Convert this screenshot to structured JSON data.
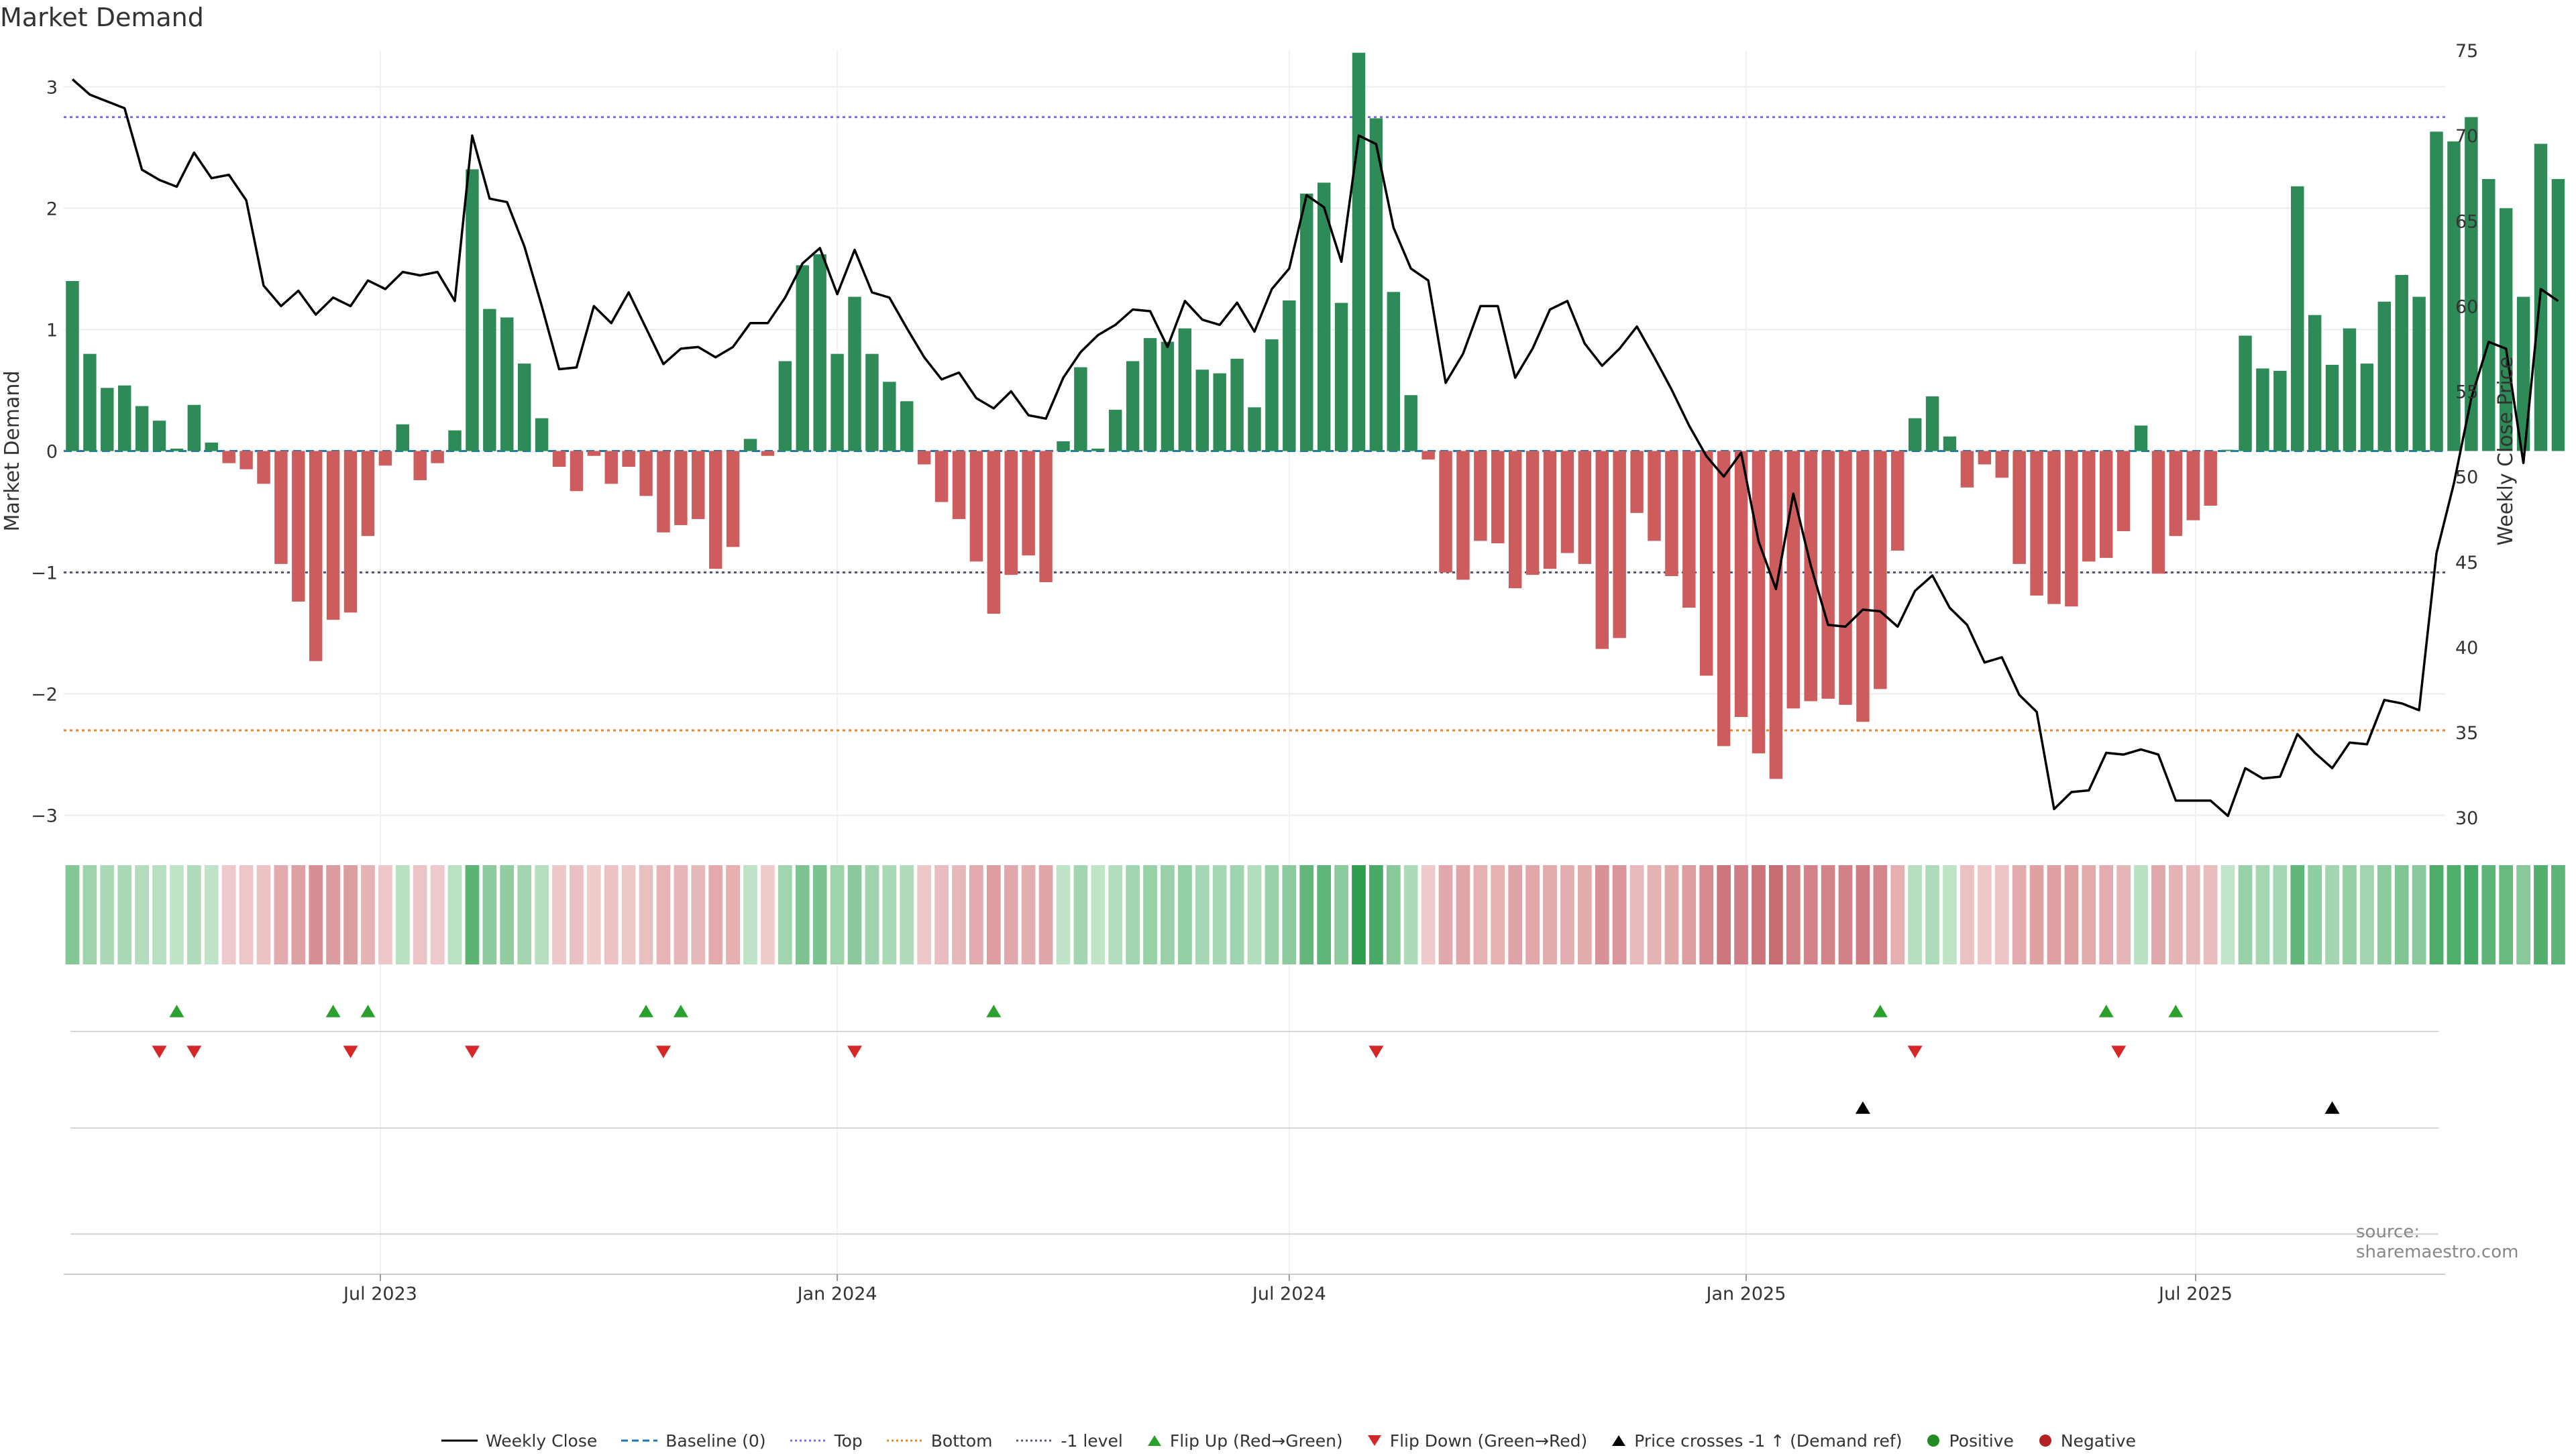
{
  "title": "Market Demand",
  "source": "source: sharemaestro.com",
  "colors": {
    "positive_bar": "#2e8b57",
    "negative_bar": "#cd5c5c",
    "close_line": "#000000",
    "baseline": "#1f77b4",
    "top_line": "#7b68ee",
    "bottom_line": "#e08a2c",
    "minus_one_line": "#555577",
    "flip_up": "#2ca02c",
    "flip_down": "#d62728",
    "cross_marker": "#000000",
    "positive_dot": "#228b22",
    "negative_dot": "#b22222"
  },
  "legend": [
    {
      "label": "Weekly Close",
      "kind": "line",
      "color": "#000000",
      "dash": ""
    },
    {
      "label": "Baseline (0)",
      "kind": "line",
      "color": "#1f77b4",
      "dash": "10,6"
    },
    {
      "label": "Top",
      "kind": "line",
      "color": "#7b68ee",
      "dash": "3,4"
    },
    {
      "label": "Bottom",
      "kind": "line",
      "color": "#e08a2c",
      "dash": "3,4"
    },
    {
      "label": "-1 level",
      "kind": "line",
      "color": "#555577",
      "dash": "3,4"
    },
    {
      "label": "Flip Up (Red→Green)",
      "kind": "tri-up",
      "color": "#2ca02c"
    },
    {
      "label": "Flip Down (Green→Red)",
      "kind": "tri-down",
      "color": "#d62728"
    },
    {
      "label": "Price crosses -1 ↑ (Demand ref)",
      "kind": "tri-up",
      "color": "#000000"
    },
    {
      "label": "Positive",
      "kind": "dot",
      "color": "#228b22"
    },
    {
      "label": "Negative",
      "kind": "dot",
      "color": "#b22222"
    }
  ],
  "chart_data": {
    "type": "bar",
    "title": "Market Demand",
    "ylabel": "Market Demand",
    "y2label": "Weekly Close Price",
    "ylim": [
      -3.3,
      3.3
    ],
    "y2lim": [
      28,
      75
    ],
    "yticks": [
      -3,
      -2,
      -1,
      0,
      1,
      2,
      3
    ],
    "ytick_labels": [
      "−3",
      "−2",
      "−1",
      "0",
      "1",
      "2",
      "3"
    ],
    "y2ticks": [
      30,
      35,
      40,
      45,
      50,
      55,
      60,
      65,
      70,
      75
    ],
    "x_range": [
      "2023-02-27",
      "2025-10-06"
    ],
    "x_interval_days": 7,
    "xticks": [
      {
        "date": "2023-07-01",
        "label": "Jul 2023"
      },
      {
        "date": "2024-01-01",
        "label": "Jan 2024"
      },
      {
        "date": "2024-07-01",
        "label": "Jul 2024"
      },
      {
        "date": "2025-01-01",
        "label": "Jan 2025"
      },
      {
        "date": "2025-07-01",
        "label": "Jul 2025"
      }
    ],
    "levels": {
      "baseline": 0,
      "top": 2.75,
      "bottom": -2.3,
      "minus_one": -1
    },
    "demand": [
      1.4,
      0.8,
      0.52,
      0.54,
      0.37,
      0.25,
      0.02,
      0.38,
      0.07,
      -0.1,
      -0.15,
      -0.27,
      -0.93,
      -1.24,
      -1.73,
      -1.39,
      -1.33,
      -0.7,
      -0.12,
      0.22,
      -0.24,
      -0.1,
      0.17,
      2.32,
      1.17,
      1.1,
      0.72,
      0.27,
      -0.13,
      -0.33,
      -0.04,
      -0.27,
      -0.13,
      -0.37,
      -0.67,
      -0.61,
      -0.56,
      -0.97,
      -0.79,
      0.1,
      -0.04,
      0.74,
      1.53,
      1.62,
      0.8,
      1.27,
      0.8,
      0.57,
      0.41,
      -0.11,
      -0.42,
      -0.56,
      -0.91,
      -1.34,
      -1.02,
      -0.86,
      -1.08,
      0.08,
      0.69,
      0.02,
      0.34,
      0.74,
      0.93,
      0.9,
      1.01,
      0.67,
      0.64,
      0.76,
      0.36,
      0.92,
      1.24,
      2.12,
      2.21,
      1.22,
      3.28,
      2.74,
      1.31,
      0.46,
      -0.07,
      -1.0,
      -1.06,
      -0.74,
      -0.76,
      -1.13,
      -1.02,
      -0.97,
      -0.84,
      -0.93,
      -1.63,
      -1.54,
      -0.51,
      -0.74,
      -1.03,
      -1.29,
      -1.85,
      -2.43,
      -2.19,
      -2.49,
      -2.7,
      -2.12,
      -2.06,
      -2.04,
      -2.09,
      -2.23,
      -1.96,
      -0.82,
      0.27,
      0.45,
      0.12,
      -0.3,
      -0.11,
      -0.22,
      -0.93,
      -1.19,
      -1.26,
      -1.28,
      -0.91,
      -0.88,
      -0.66,
      0.21,
      -1.01,
      -0.7,
      -0.57,
      -0.45,
      0.01,
      0.95,
      0.68,
      0.66,
      2.18,
      1.12,
      0.71,
      1.01,
      0.72,
      1.23,
      1.45,
      1.27,
      2.63,
      2.55,
      2.75,
      2.24,
      2.0,
      1.27,
      2.53,
      2.24
    ],
    "weekly_close": [
      73.3,
      72.4,
      72.0,
      71.6,
      68.0,
      67.4,
      67.0,
      69.0,
      67.5,
      67.7,
      66.2,
      61.2,
      60.0,
      60.9,
      59.5,
      60.5,
      60.0,
      61.5,
      61.0,
      62.0,
      61.8,
      62.0,
      60.3,
      70.0,
      66.3,
      66.1,
      63.5,
      60.0,
      56.3,
      56.4,
      60.0,
      59.0,
      60.8,
      58.7,
      56.6,
      57.5,
      57.6,
      57.0,
      57.6,
      59.0,
      59.0,
      60.5,
      62.5,
      63.4,
      60.7,
      63.3,
      60.8,
      60.5,
      58.7,
      57.0,
      55.7,
      56.1,
      54.6,
      54.0,
      55.0,
      53.6,
      53.4,
      55.8,
      57.3,
      58.3,
      58.9,
      59.8,
      59.7,
      57.6,
      60.3,
      59.2,
      58.9,
      60.2,
      58.5,
      61.0,
      62.2,
      66.5,
      65.8,
      62.6,
      70.0,
      69.5,
      64.6,
      62.2,
      61.5,
      55.5,
      57.2,
      60.0,
      60.0,
      55.8,
      57.5,
      59.8,
      60.3,
      57.8,
      56.5,
      57.5,
      58.8,
      57.0,
      55.1,
      53.0,
      51.2,
      50.0,
      51.4,
      46.2,
      43.4,
      49.0,
      44.8,
      41.3,
      41.2,
      42.2,
      42.1,
      41.2,
      43.3,
      44.2,
      42.3,
      41.3,
      39.1,
      39.4,
      37.2,
      36.2,
      30.5,
      31.5,
      31.6,
      33.8,
      33.7,
      34.0,
      33.7,
      31.0,
      31.0,
      31.0,
      30.1,
      32.9,
      32.3,
      32.4,
      34.9,
      33.8,
      32.9,
      34.4,
      34.3,
      36.9,
      36.7,
      36.3,
      45.5,
      49.6,
      54.6,
      57.9,
      57.5,
      50.8,
      61.0,
      60.3
    ],
    "flip_up_dates": [
      "2023-04-10",
      "2023-06-12",
      "2023-06-26",
      "2023-10-16",
      "2023-10-30",
      "2024-03-04",
      "2025-02-24",
      "2025-05-26",
      "2025-06-23"
    ],
    "flip_down_dates": [
      "2023-04-03",
      "2023-04-17",
      "2023-06-19",
      "2023-08-07",
      "2023-10-23",
      "2024-01-08",
      "2024-08-05",
      "2025-03-10",
      "2025-05-31"
    ],
    "price_cross_dates": [
      "2025-02-17",
      "2025-08-25"
    ],
    "heat_strip": "demand-colored cells, one per week"
  }
}
